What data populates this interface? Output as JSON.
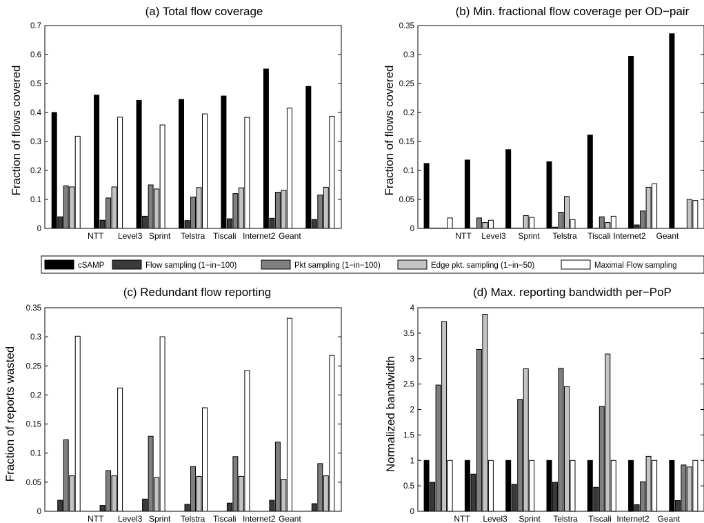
{
  "legend": {
    "entries": [
      "cSAMP",
      "Flow sampling (1−in−100)",
      "Pkt sampling (1−in−100)",
      "Edge pkt. sampling (1−in−50)",
      "Maximal Flow sampling"
    ],
    "colors": [
      "#000000",
      "#3a3a3a",
      "#7f7f7f",
      "#c4c4c4",
      "#ffffff"
    ]
  },
  "chart_data": [
    {
      "type": "bar",
      "title": "(a) Total flow coverage",
      "xlabel": "",
      "ylabel": "Fraction of flows covered",
      "ylim": [
        0,
        0.7
      ],
      "yticks": [
        "0",
        "0.1",
        "0.2",
        "0.3",
        "0.4",
        "0.5",
        "0.6",
        "0.7"
      ],
      "categories": [
        "NTT",
        "Level3",
        "Sprint",
        "Telstra",
        "Tiscali",
        "Internet2",
        "Geant"
      ],
      "series": [
        {
          "name": "cSAMP",
          "values": [
            0.4,
            0.46,
            0.442,
            0.445,
            0.457,
            0.55,
            0.49
          ]
        },
        {
          "name": "Flow sampling (1−in−100)",
          "values": [
            0.04,
            0.028,
            0.042,
            0.027,
            0.033,
            0.035,
            0.031
          ]
        },
        {
          "name": "Pkt sampling (1−in−100)",
          "values": [
            0.147,
            0.105,
            0.15,
            0.108,
            0.12,
            0.125,
            0.115
          ]
        },
        {
          "name": "Edge pkt. sampling (1−in−50)",
          "values": [
            0.143,
            0.143,
            0.136,
            0.141,
            0.14,
            0.132,
            0.142
          ]
        },
        {
          "name": "Maximal Flow sampling",
          "values": [
            0.318,
            0.384,
            0.357,
            0.395,
            0.383,
            0.415,
            0.387
          ]
        }
      ]
    },
    {
      "type": "bar",
      "title": "(b) Min. fractional flow coverage per OD−pair",
      "xlabel": "",
      "ylabel": "Fraction of flows covered",
      "ylim": [
        0,
        0.35
      ],
      "yticks": [
        "0",
        "0.05",
        "0.1",
        "0.15",
        "0.2",
        "0.25",
        "0.3",
        "0.35"
      ],
      "categories": [
        "NTT",
        "Level3",
        "Sprint",
        "Telstra",
        "Tiscali",
        "Internet2",
        "Geant"
      ],
      "series": [
        {
          "name": "cSAMP",
          "values": [
            0.112,
            0.118,
            0.136,
            0.115,
            0.161,
            0.297,
            0.336
          ]
        },
        {
          "name": "Flow sampling (1−in−100)",
          "values": [
            0.0005,
            0.0005,
            0.0005,
            0.002,
            0.0005,
            0.006,
            0.0005
          ]
        },
        {
          "name": "Pkt sampling (1−in−100)",
          "values": [
            0.0005,
            0.018,
            0.0005,
            0.028,
            0.02,
            0.03,
            0.0005
          ]
        },
        {
          "name": "Edge pkt. sampling (1−in−50)",
          "values": [
            0.0005,
            0.01,
            0.022,
            0.055,
            0.01,
            0.071,
            0.05
          ]
        },
        {
          "name": "Maximal Flow sampling",
          "values": [
            0.018,
            0.014,
            0.019,
            0.015,
            0.021,
            0.077,
            0.048
          ]
        }
      ]
    },
    {
      "type": "bar",
      "title": "(c) Redundant flow reporting",
      "xlabel": "",
      "ylabel": "Fraction of reports wasted",
      "ylim": [
        0,
        0.35
      ],
      "yticks": [
        "0",
        "0.05",
        "0.1",
        "0.15",
        "0.2",
        "0.25",
        "0.3",
        "0.35"
      ],
      "categories": [
        "NTT",
        "Level3",
        "Sprint",
        "Telstra",
        "Tiscali",
        "Internet2",
        "Geant"
      ],
      "series": [
        {
          "name": "cSAMP",
          "values": [
            0,
            0,
            0,
            0,
            0,
            0,
            0
          ]
        },
        {
          "name": "Flow sampling (1−in−100)",
          "values": [
            0.019,
            0.01,
            0.021,
            0.012,
            0.014,
            0.019,
            0.013
          ]
        },
        {
          "name": "Pkt sampling (1−in−100)",
          "values": [
            0.123,
            0.07,
            0.129,
            0.077,
            0.094,
            0.119,
            0.082
          ]
        },
        {
          "name": "Edge pkt. sampling (1−in−50)",
          "values": [
            0.061,
            0.061,
            0.058,
            0.06,
            0.06,
            0.055,
            0.061
          ]
        },
        {
          "name": "Maximal Flow sampling",
          "values": [
            0.301,
            0.212,
            0.3,
            0.178,
            0.242,
            0.332,
            0.268
          ]
        }
      ]
    },
    {
      "type": "bar",
      "title": "(d) Max. reporting bandwidth per−PoP",
      "xlabel": "",
      "ylabel": "Normalized bandwidth",
      "ylim": [
        0,
        4
      ],
      "yticks": [
        "0",
        "0.5",
        "1",
        "1.5",
        "2",
        "2.5",
        "3",
        "3.5",
        "4"
      ],
      "categories": [
        "NTT",
        "Level3",
        "Sprint",
        "Telstra",
        "Tiscali",
        "Internet2",
        "Geant"
      ],
      "series": [
        {
          "name": "cSAMP",
          "values": [
            1,
            1,
            1,
            1,
            1,
            1,
            1
          ]
        },
        {
          "name": "Flow sampling (1−in−100)",
          "values": [
            0.57,
            0.73,
            0.53,
            0.57,
            0.47,
            0.13,
            0.21
          ]
        },
        {
          "name": "Pkt sampling (1−in−100)",
          "values": [
            2.48,
            3.18,
            2.2,
            2.81,
            2.06,
            0.58,
            0.91
          ]
        },
        {
          "name": "Edge pkt. sampling (1−in−50)",
          "values": [
            3.73,
            3.87,
            2.8,
            2.45,
            3.09,
            1.08,
            0.87
          ]
        },
        {
          "name": "Maximal Flow sampling",
          "values": [
            1,
            1,
            1,
            1,
            1,
            1,
            1
          ]
        }
      ]
    }
  ]
}
